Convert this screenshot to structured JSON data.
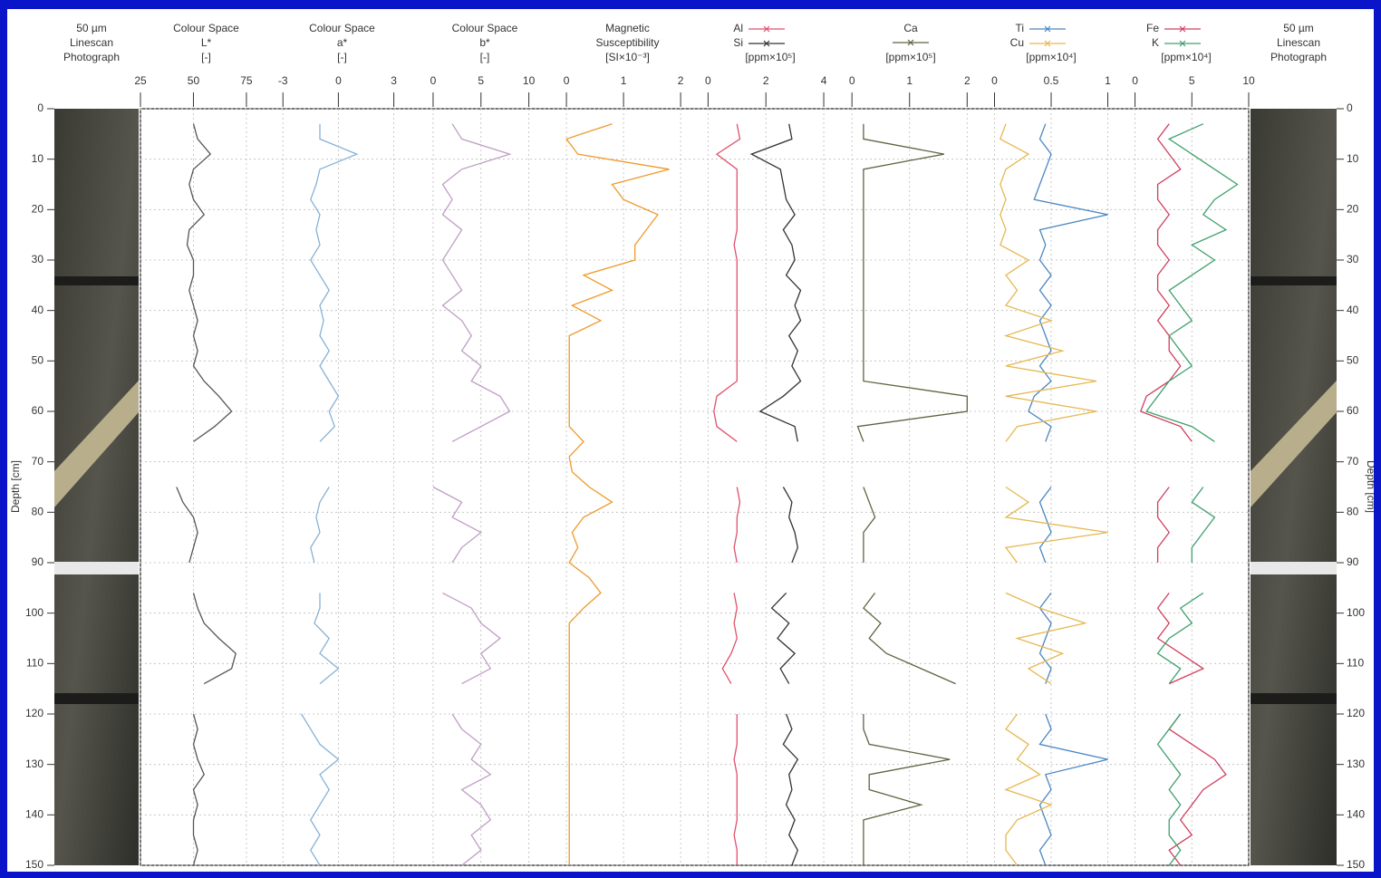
{
  "chart_data": {
    "type": "depth-log",
    "photo_title": [
      "50 µm",
      "Linescan",
      "Photograph"
    ],
    "ylabel": "Depth [cm]",
    "ylim": [
      0,
      150
    ],
    "yticks": [
      0,
      10,
      20,
      30,
      40,
      50,
      60,
      70,
      80,
      90,
      100,
      110,
      120,
      130,
      140,
      150
    ],
    "depth": [
      0,
      3,
      6,
      9,
      12,
      15,
      18,
      21,
      24,
      27,
      30,
      33,
      36,
      39,
      42,
      45,
      48,
      51,
      54,
      57,
      60,
      63,
      66,
      69,
      72,
      75,
      78,
      81,
      84,
      87,
      90,
      93,
      96,
      99,
      102,
      105,
      108,
      111,
      114,
      117,
      120,
      123,
      126,
      129,
      132,
      135,
      138,
      141,
      144,
      147,
      150
    ],
    "panels": [
      {
        "title": [
          "Colour Space",
          "L*",
          "[-]"
        ],
        "xlim": [
          25,
          87
        ],
        "xticks": [
          25,
          50,
          75
        ],
        "series": [
          {
            "color": "#555555",
            "values": [
              null,
              50,
              52,
              58,
              50,
              48,
              50,
              55,
              48,
              47,
              50,
              50,
              48,
              50,
              52,
              50,
              52,
              50,
              55,
              62,
              68,
              60,
              50,
              null,
              null,
              42,
              45,
              50,
              52,
              50,
              48,
              null,
              50,
              52,
              55,
              62,
              70,
              68,
              55,
              null,
              50,
              52,
              50,
              52,
              55,
              50,
              52,
              50,
              50,
              52,
              50
            ]
          }
        ]
      },
      {
        "title": [
          "Colour Space",
          "a*",
          "[-]"
        ],
        "xlim": [
          -3.6,
          4
        ],
        "xticks": [
          -3,
          0,
          3
        ],
        "series": [
          {
            "color": "#86b2d6",
            "values": [
              null,
              -1,
              -1,
              1,
              -1,
              -1.2,
              -1.5,
              -1,
              -1.2,
              -1,
              -1.5,
              -1,
              -0.5,
              -1,
              -0.8,
              -1,
              -0.5,
              -1,
              -0.5,
              0,
              -0.5,
              -0.2,
              -1,
              null,
              null,
              -0.5,
              -1,
              -1.2,
              -1,
              -1.5,
              -1.3,
              null,
              -1,
              -1,
              -1.3,
              -0.5,
              -1,
              0,
              -1,
              null,
              -2,
              -1.5,
              -1,
              0,
              -1,
              -0.5,
              -1,
              -1.5,
              -1,
              -1.5,
              -1
            ]
          }
        ]
      },
      {
        "title": [
          "Colour Space",
          "b*",
          "[-]"
        ],
        "xlim": [
          -1.7,
          12.5
        ],
        "xticks": [
          0,
          5,
          10
        ],
        "series": [
          {
            "color": "#c09cc6",
            "values": [
              null,
              2,
              3,
              8,
              3,
              1,
              2,
              1,
              3,
              2,
              1,
              2,
              3,
              1,
              3,
              4,
              3,
              5,
              4,
              7,
              8,
              5,
              2,
              null,
              null,
              0,
              3,
              2,
              5,
              3,
              2,
              null,
              1,
              4,
              5,
              7,
              5,
              6,
              3,
              null,
              2,
              3,
              5,
              4,
              6,
              3,
              5,
              6,
              4,
              5,
              3
            ]
          }
        ]
      },
      {
        "title": [
          "Magnetic",
          "Susceptibility",
          "[SI×10⁻³]"
        ],
        "xlim": [
          -0.16,
          2.3
        ],
        "xticks": [
          0,
          1,
          2
        ],
        "series": [
          {
            "color": "#ee9a2a",
            "values": [
              null,
              0.8,
              0,
              0.2,
              1.8,
              0.8,
              1.0,
              1.6,
              1.4,
              1.2,
              1.2,
              0.3,
              0.8,
              0.1,
              0.6,
              0.05,
              0.05,
              0.05,
              0.05,
              0.05,
              0.05,
              0.05,
              0.3,
              0.05,
              0.1,
              0.4,
              0.8,
              0.3,
              0.1,
              0.2,
              0.05,
              0.4,
              0.6,
              0.3,
              0.05,
              0.05,
              0.05,
              0.05,
              0.05,
              0.05,
              0.05,
              0.05,
              0.05,
              0.05,
              0.05,
              0.05,
              0.05,
              0.05,
              0.05,
              0.05,
              0.05
            ]
          }
        ]
      },
      {
        "unit": "[ppm×10⁵]",
        "xlim": [
          -0.2,
          4.5
        ],
        "xticks": [
          0,
          2,
          4
        ],
        "series": [
          {
            "name": "Al",
            "color": "#e0506a",
            "values": [
              null,
              1,
              1.1,
              0.3,
              1,
              1,
              1,
              1,
              1,
              0.9,
              1,
              1,
              1,
              1,
              1,
              1,
              1,
              1,
              1,
              0.3,
              0.2,
              0.3,
              1,
              null,
              null,
              1,
              1.1,
              1,
              1,
              0.9,
              1,
              null,
              0.9,
              1,
              0.9,
              1,
              0.8,
              0.5,
              0.8,
              null,
              1,
              1,
              1,
              0.9,
              1,
              1,
              1,
              1,
              0.9,
              1,
              1
            ]
          },
          {
            "name": "Si",
            "color": "#333333",
            "values": [
              null,
              2.8,
              2.9,
              1.5,
              2.5,
              2.6,
              2.7,
              3.0,
              2.6,
              2.9,
              3.0,
              2.7,
              3.2,
              3.0,
              3.2,
              2.8,
              3.1,
              2.9,
              3.2,
              2.6,
              1.8,
              3.0,
              3.1,
              null,
              null,
              2.6,
              2.9,
              2.8,
              3.0,
              3.1,
              2.9,
              null,
              2.7,
              2.2,
              2.8,
              2.4,
              3.0,
              2.5,
              2.8,
              null,
              2.7,
              2.9,
              2.6,
              3.1,
              2.8,
              2.9,
              2.7,
              3.0,
              2.8,
              3.1,
              2.9
            ]
          }
        ]
      },
      {
        "unit": "[ppm×10⁵]",
        "xlim": [
          -0.16,
          2.2
        ],
        "xticks": [
          0,
          1,
          2
        ],
        "series": [
          {
            "name": "Ca",
            "color": "#5e6440",
            "values": [
              null,
              0.2,
              0.2,
              1.6,
              0.2,
              0.2,
              0.2,
              0.2,
              0.2,
              0.2,
              0.2,
              0.2,
              0.2,
              0.2,
              0.2,
              0.2,
              0.2,
              0.2,
              0.2,
              2.0,
              2.0,
              0.1,
              0.2,
              null,
              null,
              0.2,
              0.3,
              0.4,
              0.2,
              0.2,
              0.2,
              null,
              0.4,
              0.2,
              0.5,
              0.3,
              0.6,
              1.2,
              1.8,
              null,
              0.2,
              0.2,
              0.3,
              1.7,
              0.3,
              0.3,
              1.2,
              0.2,
              0.2,
              0.2,
              0.2
            ]
          }
        ]
      },
      {
        "unit": "[ppm×10⁴]",
        "xlim": [
          -0.1,
          1.1
        ],
        "xticks": [
          0,
          0.5,
          1
        ],
        "series": [
          {
            "name": "Ti",
            "color": "#4a86c0",
            "values": [
              null,
              0.45,
              0.4,
              0.5,
              0.45,
              0.4,
              0.35,
              1.0,
              0.4,
              0.45,
              0.4,
              0.5,
              0.4,
              0.5,
              0.4,
              0.45,
              0.5,
              0.4,
              0.5,
              0.35,
              0.3,
              0.5,
              0.45,
              null,
              null,
              0.5,
              0.4,
              0.45,
              0.5,
              0.4,
              0.45,
              null,
              0.5,
              0.4,
              0.5,
              0.45,
              0.4,
              0.5,
              0.45,
              null,
              0.45,
              0.5,
              0.4,
              1.0,
              0.45,
              0.5,
              0.4,
              0.45,
              0.5,
              0.4,
              0.45
            ]
          },
          {
            "name": "Cu",
            "color": "#e6b850",
            "values": [
              null,
              0.1,
              0.05,
              0.3,
              0.1,
              0.05,
              0.1,
              0.05,
              0.1,
              0.05,
              0.3,
              0.1,
              0.2,
              0.1,
              0.5,
              0.1,
              0.6,
              0.1,
              0.9,
              0.1,
              0.9,
              0.2,
              0.1,
              null,
              null,
              0.1,
              0.3,
              0.1,
              1.0,
              0.1,
              0.2,
              null,
              0.1,
              0.4,
              0.8,
              0.2,
              0.6,
              0.3,
              0.5,
              null,
              0.2,
              0.1,
              0.3,
              0.2,
              0.4,
              0.1,
              0.5,
              0.2,
              0.1,
              0.1,
              0.2
            ]
          }
        ]
      },
      {
        "unit": "[ppm×10⁴]",
        "xlim": [
          -1,
          10
        ],
        "xticks": [
          0,
          5,
          10
        ],
        "series": [
          {
            "name": "Fe",
            "color": "#d0405e",
            "values": [
              null,
              3,
              2,
              3,
              4,
              2,
              2,
              3,
              2,
              2,
              3,
              2,
              2,
              3,
              2,
              3,
              3,
              4,
              3,
              1,
              0.5,
              4,
              5,
              null,
              null,
              3,
              2,
              2,
              3,
              2,
              2,
              null,
              3,
              2,
              3,
              2,
              4,
              6,
              3,
              null,
              4,
              3,
              5,
              7,
              8,
              6,
              5,
              4,
              5,
              3,
              4
            ]
          },
          {
            "name": "K",
            "color": "#3fa06c",
            "values": [
              null,
              6,
              3,
              5,
              7,
              9,
              7,
              6,
              8,
              5,
              7,
              5,
              3,
              4,
              5,
              3,
              4,
              5,
              3,
              2,
              1,
              5,
              7,
              null,
              null,
              6,
              5,
              7,
              6,
              5,
              5,
              null,
              6,
              4,
              5,
              3,
              2,
              4,
              3,
              null,
              4,
              3,
              2,
              3,
              4,
              3,
              4,
              3,
              3,
              4,
              3
            ]
          }
        ]
      }
    ]
  }
}
